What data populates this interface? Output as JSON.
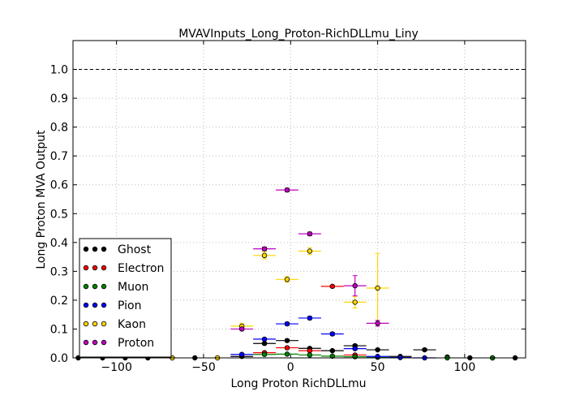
{
  "chart_data": {
    "type": "scatter",
    "title": "MVAVInputs_Long_Proton-RichDLLmu_Liny",
    "xlabel": "Long Proton RichDLLmu",
    "ylabel": "Long Proton MVA Output",
    "xlim": [
      -125,
      135
    ],
    "ylim": [
      0.0,
      1.1
    ],
    "xticks": [
      -100,
      -50,
      0,
      50,
      100
    ],
    "xtick_labels": [
      "−100",
      "−50",
      "0",
      "50",
      "100"
    ],
    "yticks": [
      0.0,
      0.1,
      0.2,
      0.3,
      0.4,
      0.5,
      0.6,
      0.7,
      0.8,
      0.9,
      1.0
    ],
    "ytick_labels": [
      "0.0",
      "0.1",
      "0.2",
      "0.3",
      "0.4",
      "0.5",
      "0.6",
      "0.7",
      "0.8",
      "0.9",
      "1.0"
    ],
    "reference_line": 1.0,
    "grid": true,
    "legend_position": "lower-left",
    "series": [
      {
        "name": "Ghost",
        "color": "#000000",
        "points": [
          {
            "x": -122,
            "y": 0.0,
            "xerr": 0,
            "yerr": 0
          },
          {
            "x": -108,
            "y": 0.0,
            "xerr": 0,
            "yerr": 0
          },
          {
            "x": -95,
            "y": 0.0,
            "xerr": 0,
            "yerr": 0
          },
          {
            "x": -82,
            "y": 0.0,
            "xerr": 0,
            "yerr": 0
          },
          {
            "x": -55,
            "y": 0.0,
            "xerr": 0,
            "yerr": 0
          },
          {
            "x": -28,
            "y": 0.005,
            "xerr": 6.5,
            "yerr": 0.003
          },
          {
            "x": -15,
            "y": 0.05,
            "xerr": 6.5,
            "yerr": 0.004
          },
          {
            "x": -2,
            "y": 0.06,
            "xerr": 6.5,
            "yerr": 0.004
          },
          {
            "x": 11,
            "y": 0.033,
            "xerr": 6.5,
            "yerr": 0.003
          },
          {
            "x": 24,
            "y": 0.025,
            "xerr": 6.5,
            "yerr": 0.003
          },
          {
            "x": 37,
            "y": 0.042,
            "xerr": 6.5,
            "yerr": 0.004
          },
          {
            "x": 50,
            "y": 0.028,
            "xerr": 6.5,
            "yerr": 0.003
          },
          {
            "x": 63,
            "y": 0.005,
            "xerr": 6.5,
            "yerr": 0.002
          },
          {
            "x": 77,
            "y": 0.028,
            "xerr": 6.5,
            "yerr": 0.004
          },
          {
            "x": 90,
            "y": 0.003,
            "xerr": 0,
            "yerr": 0
          },
          {
            "x": 103,
            "y": 0.0,
            "xerr": 0,
            "yerr": 0
          },
          {
            "x": 116,
            "y": 0.0,
            "xerr": 0,
            "yerr": 0
          },
          {
            "x": 129,
            "y": 0.0,
            "xerr": 0,
            "yerr": 0
          }
        ]
      },
      {
        "name": "Electron",
        "color": "#ff0000",
        "points": [
          {
            "x": -15,
            "y": 0.018,
            "xerr": 6.5,
            "yerr": 0.003
          },
          {
            "x": -2,
            "y": 0.035,
            "xerr": 6.5,
            "yerr": 0.004
          },
          {
            "x": 11,
            "y": 0.025,
            "xerr": 6.5,
            "yerr": 0.003
          },
          {
            "x": 24,
            "y": 0.248,
            "xerr": 6.5,
            "yerr": 0.004
          },
          {
            "x": 37,
            "y": 0.01,
            "xerr": 6.5,
            "yerr": 0.002
          }
        ]
      },
      {
        "name": "Muon",
        "color": "#008000",
        "points": [
          {
            "x": -15,
            "y": 0.012,
            "xerr": 6.5,
            "yerr": 0.002
          },
          {
            "x": -2,
            "y": 0.013,
            "xerr": 6.5,
            "yerr": 0.002
          },
          {
            "x": 11,
            "y": 0.01,
            "xerr": 6.5,
            "yerr": 0.002
          },
          {
            "x": 24,
            "y": 0.006,
            "xerr": 6.5,
            "yerr": 0.002
          },
          {
            "x": 37,
            "y": 0.004,
            "xerr": 6.5,
            "yerr": 0.002
          },
          {
            "x": 50,
            "y": 0.002,
            "xerr": 6.5,
            "yerr": 0.002
          },
          {
            "x": 90,
            "y": 0.0,
            "xerr": 0,
            "yerr": 0
          },
          {
            "x": 116,
            "y": 0.0,
            "xerr": 0,
            "yerr": 0
          }
        ]
      },
      {
        "name": "Pion",
        "color": "#0000ff",
        "points": [
          {
            "x": -28,
            "y": 0.012,
            "xerr": 6.5,
            "yerr": 0.003
          },
          {
            "x": -15,
            "y": 0.065,
            "xerr": 6.5,
            "yerr": 0.004
          },
          {
            "x": -2,
            "y": 0.118,
            "xerr": 6.5,
            "yerr": 0.005
          },
          {
            "x": 11,
            "y": 0.138,
            "xerr": 6.5,
            "yerr": 0.005
          },
          {
            "x": 24,
            "y": 0.083,
            "xerr": 6.5,
            "yerr": 0.005
          },
          {
            "x": 37,
            "y": 0.032,
            "xerr": 6.5,
            "yerr": 0.004
          },
          {
            "x": 50,
            "y": 0.005,
            "xerr": 6.5,
            "yerr": 0.002
          },
          {
            "x": 63,
            "y": 0.001,
            "xerr": 6.5,
            "yerr": 0.001
          },
          {
            "x": 77,
            "y": 0.0,
            "xerr": 6.5,
            "yerr": 0
          }
        ]
      },
      {
        "name": "Kaon",
        "color": "#ffd700",
        "points": [
          {
            "x": -68,
            "y": 0.0,
            "xerr": 0,
            "yerr": 0
          },
          {
            "x": -42,
            "y": 0.0,
            "xerr": 0,
            "yerr": 0
          },
          {
            "x": -28,
            "y": 0.11,
            "xerr": 6.5,
            "yerr": 0.01
          },
          {
            "x": -15,
            "y": 0.355,
            "xerr": 6.5,
            "yerr": 0.012
          },
          {
            "x": -2,
            "y": 0.272,
            "xerr": 6.5,
            "yerr": 0.01
          },
          {
            "x": 11,
            "y": 0.37,
            "xerr": 6.5,
            "yerr": 0.012
          },
          {
            "x": 37,
            "y": 0.193,
            "xerr": 6.5,
            "yerr": 0.02
          },
          {
            "x": 50,
            "y": 0.242,
            "xerr": 6.5,
            "yerr": 0.12
          }
        ]
      },
      {
        "name": "Proton",
        "color": "#c000c0",
        "points": [
          {
            "x": -28,
            "y": 0.1,
            "xerr": 6.5,
            "yerr": 0.004
          },
          {
            "x": -15,
            "y": 0.378,
            "xerr": 6.5,
            "yerr": 0.006
          },
          {
            "x": -2,
            "y": 0.582,
            "xerr": 6.5,
            "yerr": 0.006
          },
          {
            "x": 11,
            "y": 0.43,
            "xerr": 6.5,
            "yerr": 0.006
          },
          {
            "x": 37,
            "y": 0.25,
            "xerr": 6.5,
            "yerr": 0.035
          },
          {
            "x": 50,
            "y": 0.12,
            "xerr": 6.5,
            "yerr": 0.01
          }
        ]
      }
    ]
  }
}
